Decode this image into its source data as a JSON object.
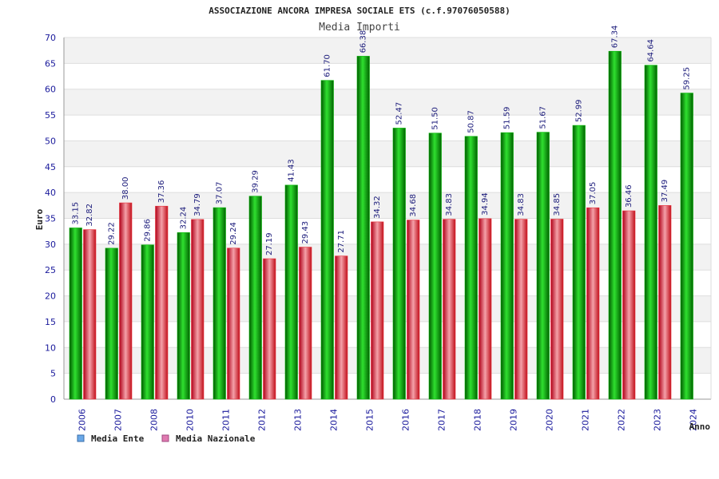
{
  "colors": {
    "series_ente": "#00b400",
    "series_nazionale": "#e8303a",
    "legend_ente": "#6aa8e8",
    "legend_nazionale": "#e07ab0",
    "band": "#f2f2f2",
    "grid": "#dddddd",
    "tick_text": "#1a1a9c"
  },
  "chart_data": {
    "type": "bar",
    "title": "ASSOCIAZIONE ANCORA IMPRESA SOCIALE ETS (c.f.97076050588)",
    "subtitle": "Media Importi",
    "xlabel": "Anno",
    "ylabel": "Euro",
    "ylim": [
      0,
      70
    ],
    "yticks": [
      0,
      5,
      10,
      15,
      20,
      25,
      30,
      35,
      40,
      45,
      50,
      55,
      60,
      65,
      70
    ],
    "grid": true,
    "legend_position": "bottom-left",
    "categories": [
      "2006",
      "2007",
      "2008",
      "2010",
      "2011",
      "2012",
      "2013",
      "2014",
      "2015",
      "2016",
      "2017",
      "2018",
      "2019",
      "2020",
      "2021",
      "2022",
      "2023",
      "2024"
    ],
    "series": [
      {
        "name": "Media Ente",
        "values": [
          33.15,
          29.22,
          29.86,
          32.24,
          37.07,
          39.29,
          41.43,
          61.7,
          66.38,
          52.47,
          51.5,
          50.87,
          51.59,
          51.67,
          52.99,
          67.34,
          64.64,
          59.25
        ],
        "labels": [
          "33.15",
          "29.22",
          "29.86",
          "32.24",
          "37.07",
          "39.29",
          "41.43",
          "61.70",
          "66.38",
          "52.47",
          "51.50",
          "50.87",
          "51.59",
          "51.67",
          "52.99",
          "67.34",
          "64.64",
          "59.25"
        ]
      },
      {
        "name": "Media Nazionale",
        "values": [
          32.82,
          38.0,
          37.36,
          34.79,
          29.24,
          27.19,
          29.43,
          27.71,
          34.32,
          34.68,
          34.83,
          34.94,
          34.83,
          34.85,
          37.05,
          36.46,
          37.49,
          null
        ],
        "labels": [
          "32.82",
          "38.00",
          "37.36",
          "34.79",
          "29.24",
          "27.19",
          "29.43",
          "27.71",
          "34.32",
          "34.68",
          "34.83",
          "34.94",
          "34.83",
          "34.85",
          "37.05",
          "36.46",
          "37.49",
          null
        ]
      }
    ]
  }
}
